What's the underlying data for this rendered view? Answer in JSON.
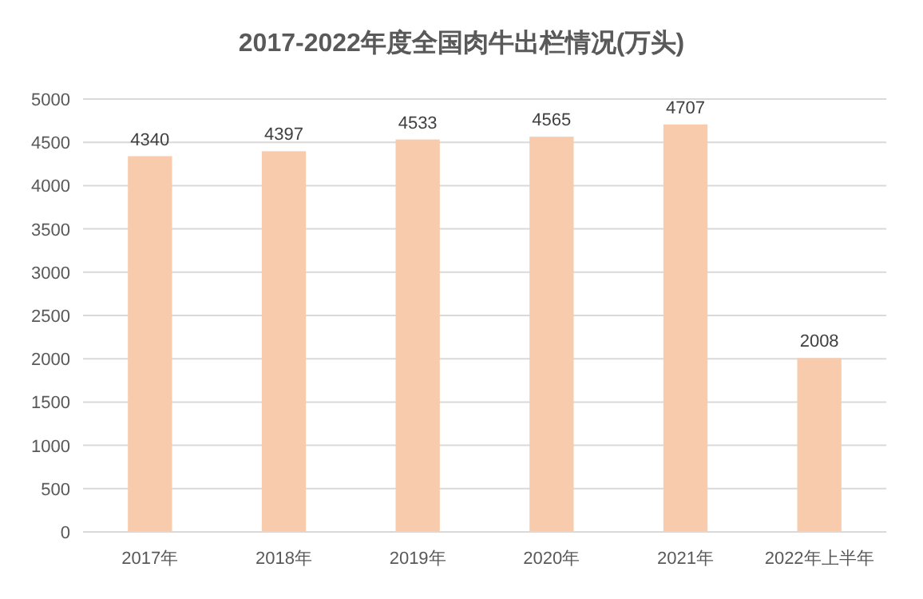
{
  "chart_data": {
    "type": "bar",
    "title": "2017-2022年度全国肉牛出栏情况(万头)",
    "categories": [
      "2017年",
      "2018年",
      "2019年",
      "2020年",
      "2021年",
      "2022年上半年"
    ],
    "values": [
      4340,
      4397,
      4533,
      4565,
      4707,
      2008
    ],
    "color": "#f8cbad",
    "ylim": [
      0,
      5000
    ],
    "yticks": [
      0,
      500,
      1000,
      1500,
      2000,
      2500,
      3000,
      3500,
      4000,
      4500,
      5000
    ],
    "grid": "y",
    "data_labels": true
  }
}
